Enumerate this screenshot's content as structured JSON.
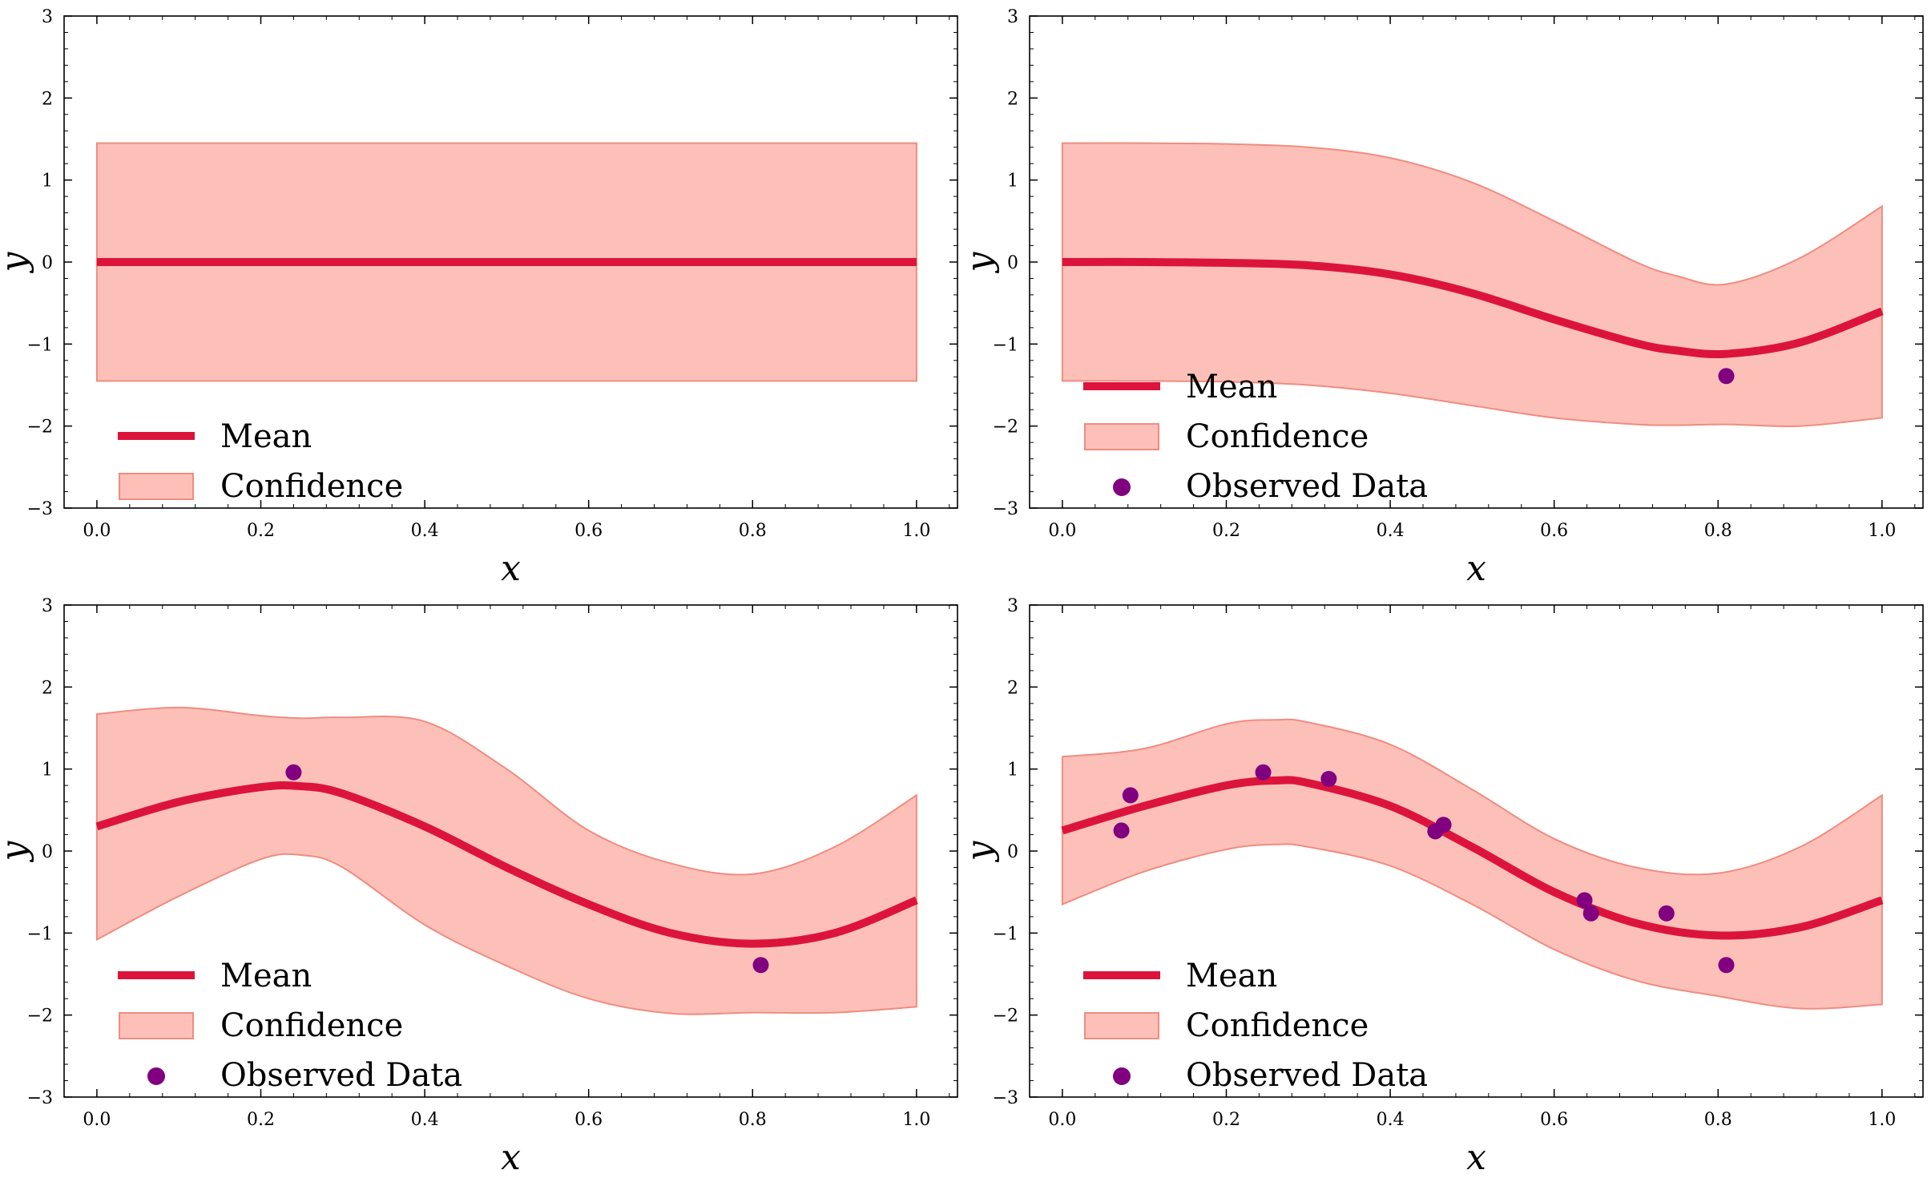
{
  "colors": {
    "mean": "#dc143c",
    "band_fill": "#fca59a",
    "band_edge": "#f08c80",
    "points": "#800080"
  },
  "chart_data": [
    {
      "type": "line",
      "title": "",
      "xlabel": "x",
      "ylabel": "y",
      "xlim": [
        -0.04,
        1.05
      ],
      "ylim": [
        -3,
        3
      ],
      "xticks": [
        0.0,
        0.2,
        0.4,
        0.6,
        0.8,
        1.0
      ],
      "xtick_labels": [
        "0.0",
        "0.2",
        "0.4",
        "0.6",
        "0.8",
        "1.0"
      ],
      "yticks": [
        -3,
        -2,
        -1,
        0,
        1,
        2,
        3
      ],
      "ytick_labels": [
        "−3",
        "−2",
        "−1",
        "0",
        "1",
        "2",
        "3"
      ],
      "legend": [
        "Mean",
        "Confidence"
      ],
      "legend_position": "lower-left",
      "series": [
        {
          "name": "Mean",
          "x": [
            0,
            1
          ],
          "y": [
            0,
            0
          ]
        },
        {
          "name": "Confidence",
          "x": [
            0,
            1
          ],
          "lower": [
            -1.45,
            -1.45
          ],
          "upper": [
            1.45,
            1.45
          ]
        }
      ],
      "observed": []
    },
    {
      "type": "line",
      "title": "",
      "xlabel": "x",
      "ylabel": "y",
      "xlim": [
        -0.04,
        1.05
      ],
      "ylim": [
        -3,
        3
      ],
      "xticks": [
        0.0,
        0.2,
        0.4,
        0.6,
        0.8,
        1.0
      ],
      "xtick_labels": [
        "0.0",
        "0.2",
        "0.4",
        "0.6",
        "0.8",
        "1.0"
      ],
      "yticks": [
        -3,
        -2,
        -1,
        0,
        1,
        2,
        3
      ],
      "ytick_labels": [
        "−3",
        "−2",
        "−1",
        "0",
        "1",
        "2",
        "3"
      ],
      "legend": [
        "Mean",
        "Confidence",
        "Observed Data"
      ],
      "legend_position": "lower-left",
      "series": [
        {
          "name": "Mean",
          "x": [
            0,
            0.1,
            0.2,
            0.3,
            0.4,
            0.5,
            0.6,
            0.7,
            0.75,
            0.81,
            0.9,
            1.0
          ],
          "y": [
            0,
            0,
            -0.01,
            -0.04,
            -0.15,
            -0.38,
            -0.7,
            -0.99,
            -1.08,
            -1.12,
            -0.98,
            -0.6
          ]
        },
        {
          "name": "Confidence",
          "x": [
            0,
            0.1,
            0.2,
            0.3,
            0.4,
            0.5,
            0.6,
            0.7,
            0.75,
            0.81,
            0.9,
            1.0
          ],
          "lower": [
            -1.45,
            -1.45,
            -1.46,
            -1.5,
            -1.6,
            -1.75,
            -1.9,
            -1.98,
            -1.99,
            -1.98,
            -2.0,
            -1.9
          ],
          "upper": [
            1.45,
            1.45,
            1.44,
            1.4,
            1.27,
            0.97,
            0.5,
            0.0,
            -0.17,
            -0.27,
            0.05,
            0.68
          ]
        }
      ],
      "observed": [
        {
          "x": 0.81,
          "y": -1.39
        }
      ]
    },
    {
      "type": "line",
      "title": "",
      "xlabel": "x",
      "ylabel": "y",
      "xlim": [
        -0.04,
        1.05
      ],
      "ylim": [
        -3,
        3
      ],
      "xticks": [
        0.0,
        0.2,
        0.4,
        0.6,
        0.8,
        1.0
      ],
      "xtick_labels": [
        "0.0",
        "0.2",
        "0.4",
        "0.6",
        "0.8",
        "1.0"
      ],
      "yticks": [
        -3,
        -2,
        -1,
        0,
        1,
        2,
        3
      ],
      "ytick_labels": [
        "−3",
        "−2",
        "−1",
        "0",
        "1",
        "2",
        "3"
      ],
      "legend": [
        "Mean",
        "Confidence",
        "Observed Data"
      ],
      "legend_position": "lower-left",
      "series": [
        {
          "name": "Mean",
          "x": [
            0,
            0.1,
            0.2,
            0.25,
            0.3,
            0.4,
            0.5,
            0.6,
            0.7,
            0.8,
            0.9,
            1.0
          ],
          "y": [
            0.3,
            0.6,
            0.78,
            0.79,
            0.7,
            0.3,
            -0.2,
            -0.65,
            -1.0,
            -1.13,
            -1.0,
            -0.6
          ]
        },
        {
          "name": "Confidence",
          "x": [
            0,
            0.1,
            0.2,
            0.25,
            0.3,
            0.4,
            0.5,
            0.6,
            0.7,
            0.8,
            0.9,
            1.0
          ],
          "lower": [
            -1.08,
            -0.55,
            -0.1,
            -0.05,
            -0.2,
            -0.9,
            -1.4,
            -1.8,
            -1.98,
            -1.97,
            -1.97,
            -1.9
          ],
          "upper": [
            1.67,
            1.75,
            1.65,
            1.62,
            1.63,
            1.58,
            1.0,
            0.25,
            -0.15,
            -0.28,
            0.05,
            0.68
          ]
        }
      ],
      "observed": [
        {
          "x": 0.24,
          "y": 0.96
        },
        {
          "x": 0.81,
          "y": -1.39
        }
      ]
    },
    {
      "type": "line",
      "title": "",
      "xlabel": "x",
      "ylabel": "y",
      "xlim": [
        -0.04,
        1.05
      ],
      "ylim": [
        -3,
        3
      ],
      "xticks": [
        0.0,
        0.2,
        0.4,
        0.6,
        0.8,
        1.0
      ],
      "xtick_labels": [
        "0.0",
        "0.2",
        "0.4",
        "0.6",
        "0.8",
        "1.0"
      ],
      "yticks": [
        -3,
        -2,
        -1,
        0,
        1,
        2,
        3
      ],
      "ytick_labels": [
        "−3",
        "−2",
        "−1",
        "0",
        "1",
        "2",
        "3"
      ],
      "legend": [
        "Mean",
        "Confidence",
        "Observed Data"
      ],
      "legend_position": "lower-left",
      "series": [
        {
          "name": "Mean",
          "x": [
            0,
            0.1,
            0.2,
            0.26,
            0.3,
            0.4,
            0.5,
            0.6,
            0.7,
            0.8,
            0.9,
            1.0
          ],
          "y": [
            0.25,
            0.55,
            0.8,
            0.86,
            0.83,
            0.55,
            0.05,
            -0.5,
            -0.88,
            -1.03,
            -0.93,
            -0.6
          ]
        },
        {
          "name": "Confidence",
          "x": [
            0,
            0.1,
            0.2,
            0.26,
            0.3,
            0.4,
            0.5,
            0.6,
            0.7,
            0.8,
            0.9,
            1.0
          ],
          "lower": [
            -0.65,
            -0.25,
            0.02,
            0.08,
            0.05,
            -0.18,
            -0.65,
            -1.2,
            -1.58,
            -1.77,
            -1.92,
            -1.87
          ],
          "upper": [
            1.15,
            1.25,
            1.55,
            1.6,
            1.57,
            1.3,
            0.75,
            0.15,
            -0.2,
            -0.27,
            0.05,
            0.68
          ]
        }
      ],
      "observed": [
        {
          "x": 0.072,
          "y": 0.25
        },
        {
          "x": 0.083,
          "y": 0.68
        },
        {
          "x": 0.245,
          "y": 0.96
        },
        {
          "x": 0.325,
          "y": 0.88
        },
        {
          "x": 0.455,
          "y": 0.24
        },
        {
          "x": 0.465,
          "y": 0.32
        },
        {
          "x": 0.637,
          "y": -0.6
        },
        {
          "x": 0.645,
          "y": -0.76
        },
        {
          "x": 0.737,
          "y": -0.76
        },
        {
          "x": 0.81,
          "y": -1.39
        }
      ]
    }
  ]
}
